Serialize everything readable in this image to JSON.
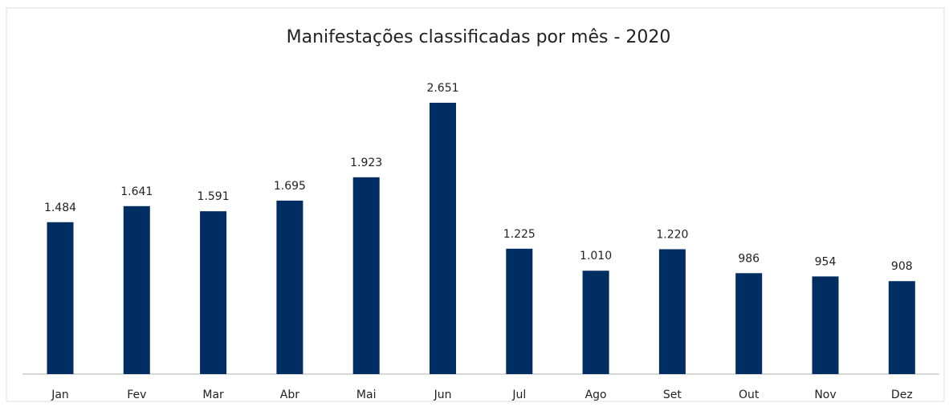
{
  "chart_data": {
    "type": "bar",
    "title": "Manifestações classificadas por mês - 2020",
    "categories": [
      "Jan",
      "Fev",
      "Mar",
      "Abr",
      "Mai",
      "Jun",
      "Jul",
      "Ago",
      "Set",
      "Out",
      "Nov",
      "Dez"
    ],
    "values": [
      1484,
      1641,
      1591,
      1695,
      1923,
      2651,
      1225,
      1010,
      1220,
      986,
      954,
      908
    ],
    "value_labels": [
      "1.484",
      "1.641",
      "1.591",
      "1.695",
      "1.923",
      "2.651",
      "1.225",
      "1.010",
      "1.220",
      "986",
      "954",
      "908"
    ],
    "color": "#002d62"
  }
}
